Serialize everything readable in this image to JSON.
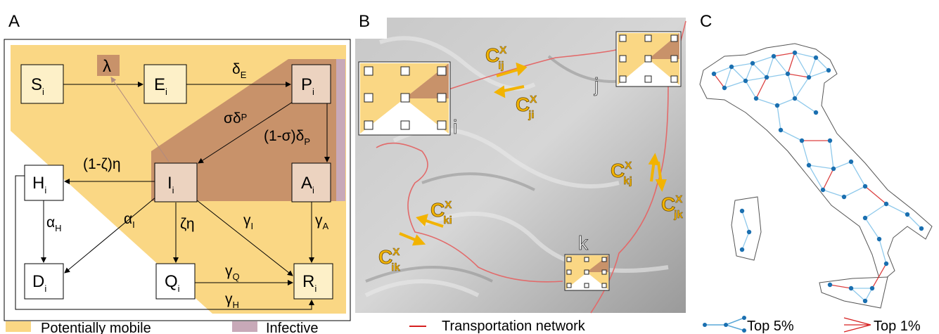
{
  "panels": {
    "a": "A",
    "b": "B",
    "c": "C"
  },
  "compartments": [
    {
      "main": "S",
      "sub": "i"
    },
    {
      "main": "E",
      "sub": "i"
    },
    {
      "main": "P",
      "sub": "i"
    },
    {
      "main": "I",
      "sub": "i"
    },
    {
      "main": "A",
      "sub": "i"
    },
    {
      "main": "H",
      "sub": "i"
    },
    {
      "main": "D",
      "sub": "i"
    },
    {
      "main": "Q",
      "sub": "i"
    },
    {
      "main": "R",
      "sub": "i"
    }
  ],
  "force_of_infection": "λ",
  "rates": [
    {
      "main": "δ",
      "sub": "E"
    },
    {
      "main": "σδ",
      "sub": "P"
    },
    {
      "main": "(1-σ)δ",
      "sub": "P"
    },
    {
      "main": "(1-ζ)η"
    },
    {
      "main": "α",
      "sub": "H"
    },
    {
      "main": "α",
      "sub": "I"
    },
    {
      "main": "ζη"
    },
    {
      "main": "γ",
      "sub": "I"
    },
    {
      "main": "γ",
      "sub": "A"
    },
    {
      "main": "γ",
      "sub": "Q"
    },
    {
      "main": "γ",
      "sub": "H"
    }
  ],
  "legend_a": [
    "Potentially mobile",
    "Infective"
  ],
  "map": {
    "fluxes": [
      {
        "main": "C",
        "sup": "X",
        "sub": "ij"
      },
      {
        "main": "C",
        "sup": "X",
        "sub": "ji"
      },
      {
        "main": "C",
        "sup": "X",
        "sub": "kj"
      },
      {
        "main": "C",
        "sup": "X",
        "sub": "jk"
      },
      {
        "main": "C",
        "sup": "X",
        "sub": "ki"
      },
      {
        "main": "C",
        "sup": "X",
        "sub": "ik"
      }
    ],
    "nodes": [
      "i",
      "j",
      "k"
    ],
    "legend": "Transportation network"
  },
  "network_legend": [
    "Top 5%",
    "Top 1%"
  ]
}
